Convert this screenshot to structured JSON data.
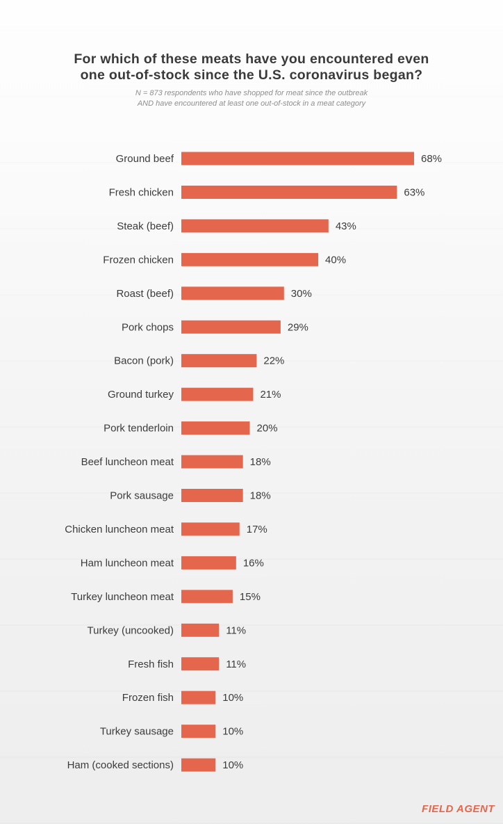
{
  "header": {
    "title_line1": "For which of these meats have you encountered even",
    "title_line2": "one out-of-stock since the U.S. coronavirus began?",
    "subtitle_line1": "N = 873 respondents who have shopped for meat since the outbreak",
    "subtitle_line2": "AND have encountered at least one out-of-stock in a meat category"
  },
  "logo": "FIELD AGENT",
  "colors": {
    "bar": "#e4664c",
    "text": "#3b3b3b"
  },
  "chart_data": {
    "type": "bar",
    "orientation": "horizontal",
    "categories": [
      "Ground beef",
      "Fresh chicken",
      "Steak (beef)",
      "Frozen chicken",
      "Roast (beef)",
      "Pork chops",
      "Bacon (pork)",
      "Ground turkey",
      "Pork tenderloin",
      "Beef luncheon meat",
      "Pork sausage",
      "Chicken luncheon meat",
      "Ham luncheon meat",
      "Turkey luncheon meat",
      "Turkey (uncooked)",
      "Fresh fish",
      "Frozen fish",
      "Turkey sausage",
      "Ham (cooked sections)"
    ],
    "values": [
      68,
      63,
      43,
      40,
      30,
      29,
      22,
      21,
      20,
      18,
      18,
      17,
      16,
      15,
      11,
      11,
      10,
      10,
      10
    ],
    "value_labels": [
      "68%",
      "63%",
      "43%",
      "40%",
      "30%",
      "29%",
      "22%",
      "21%",
      "20%",
      "18%",
      "18%",
      "17%",
      "16%",
      "15%",
      "11%",
      "11%",
      "10%",
      "10%",
      "10%"
    ],
    "unit": "%",
    "xlim": [
      0,
      68
    ],
    "grid": false,
    "legend": "none"
  }
}
